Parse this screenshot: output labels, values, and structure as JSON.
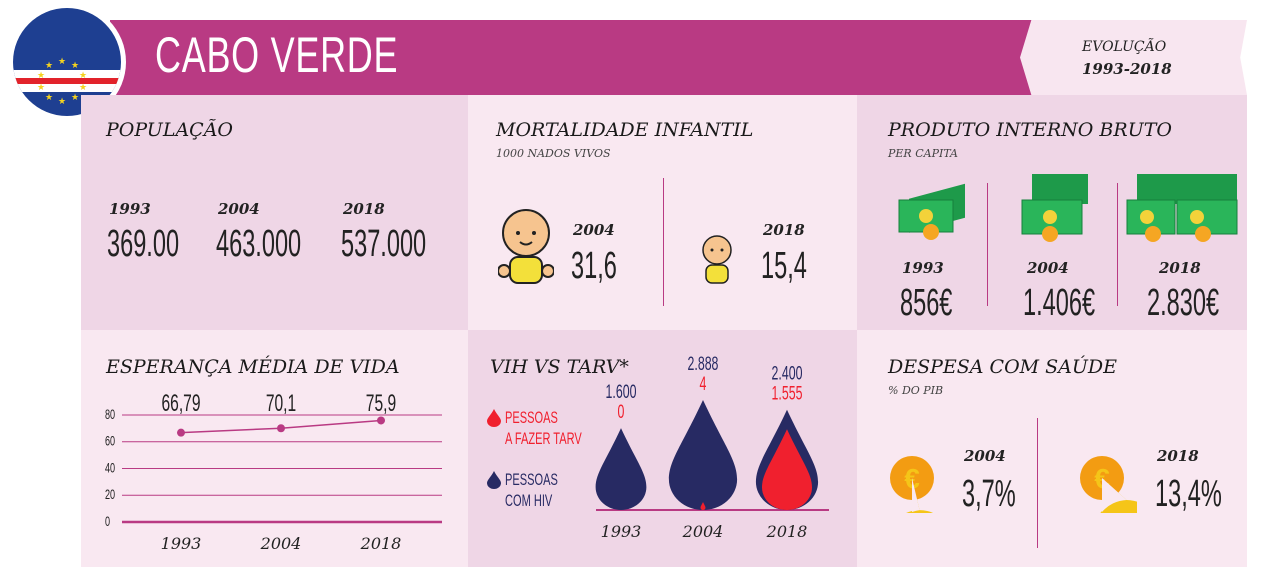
{
  "header": {
    "country": "CABO VERDE",
    "ribbon_line1": "EVOLUÇÃO",
    "ribbon_line2": "1993-2018"
  },
  "populacao": {
    "title": "POPULAÇÃO",
    "items": [
      {
        "year": "1993",
        "value": "369.00"
      },
      {
        "year": "2004",
        "value": "463.000"
      },
      {
        "year": "2018",
        "value": "537.000"
      }
    ]
  },
  "mortalidade": {
    "title": "MORTALIDADE INFANTIL",
    "subtitle": "1000 NADOS VIVOS",
    "items": [
      {
        "year": "2004",
        "value": "31,6"
      },
      {
        "year": "2018",
        "value": "15,4"
      }
    ]
  },
  "pib": {
    "title": "PRODUTO INTERNO BRUTO",
    "subtitle": "PER CAPITA",
    "items": [
      {
        "year": "1993",
        "value": "856€"
      },
      {
        "year": "2004",
        "value": "1.406€"
      },
      {
        "year": "2018",
        "value": "2.830€"
      }
    ]
  },
  "despesa": {
    "title": "DESPESA COM SAÚDE",
    "subtitle": "% DO PIB",
    "items": [
      {
        "year": "2004",
        "value": "3,7%",
        "pct": 3.7
      },
      {
        "year": "2018",
        "value": "13,4%",
        "pct": 13.4
      }
    ]
  },
  "colors": {
    "magenta": "#b93a83",
    "navy": "#272a63",
    "red": "#f0202e"
  },
  "chart_data": [
    {
      "type": "line",
      "title": "ESPERANÇA MÉDIA DE VIDA",
      "categories": [
        "1993",
        "2004",
        "2018"
      ],
      "values": [
        66.79,
        70.1,
        75.9
      ],
      "labels": [
        "66,79",
        "70,1",
        "75,9"
      ],
      "yticks": [
        "80",
        "60",
        "40",
        "20",
        "0"
      ],
      "ylim": [
        0,
        80
      ],
      "grid": true
    },
    {
      "type": "bar",
      "title": "VIH VS TARV*",
      "categories": [
        "1993",
        "2004",
        "2018"
      ],
      "legend": [
        {
          "name": "PESSOAS A FAZER TARV",
          "l1": "PESSOAS",
          "l2": "A FAZER TARV"
        },
        {
          "name": "PESSOAS COM HIV",
          "l1": "PESSOAS",
          "l2": "COM HIV"
        }
      ],
      "series": [
        {
          "name": "PESSOAS COM HIV",
          "values": [
            1600,
            2888,
            2400
          ],
          "labels": [
            "1.600",
            "2.888",
            "2.400"
          ]
        },
        {
          "name": "PESSOAS A FAZER TARV",
          "values": [
            0,
            4,
            1555
          ],
          "labels": [
            "0",
            "4",
            "1.555"
          ]
        }
      ]
    }
  ]
}
